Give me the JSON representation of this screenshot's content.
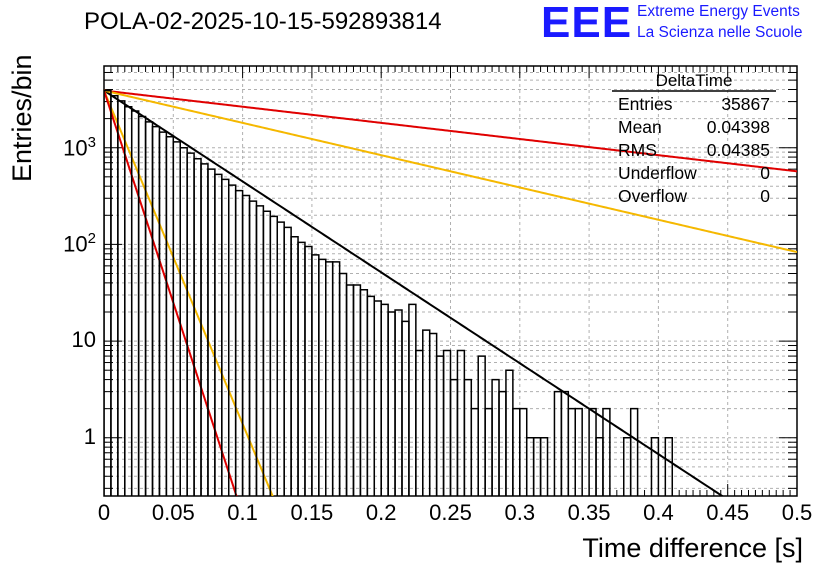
{
  "header": {
    "title": "POLA-02-2025-10-15-592893814",
    "logo_text": "EEE",
    "logo_line1": "Extreme Energy Events",
    "logo_line2": "La Scienza nelle Scuole"
  },
  "stats": {
    "title": "DeltaTime",
    "rows": [
      {
        "label": "Entries",
        "value": "35867"
      },
      {
        "label": "Mean",
        "value": "0.04398"
      },
      {
        "label": "RMS",
        "value": "0.04385"
      },
      {
        "label": "Underflow",
        "value": "0"
      },
      {
        "label": "Overflow",
        "value": "0"
      }
    ]
  },
  "chart_data": {
    "type": "histogram",
    "scale_y": "log",
    "xlabel": "Time difference [s]",
    "ylabel": "Entries/bin",
    "xlim": [
      0,
      0.5
    ],
    "ylim": [
      0.25,
      7000
    ],
    "bin_width": 0.005,
    "x_ticks": [
      "0",
      "0.05",
      "0.1",
      "0.15",
      "0.2",
      "0.25",
      "0.3",
      "0.35",
      "0.4",
      "0.45",
      "0.5"
    ],
    "y_ticks": [
      {
        "value": 1,
        "label": "1"
      },
      {
        "value": 10,
        "label": "10"
      },
      {
        "value": 100,
        "label": "10",
        "exp": "2"
      },
      {
        "value": 1000,
        "label": "10",
        "exp": "3"
      }
    ],
    "histogram_counts": [
      3900,
      3450,
      3050,
      2650,
      2400,
      2100,
      1850,
      1650,
      1450,
      1300,
      1150,
      1000,
      880,
      770,
      680,
      600,
      530,
      470,
      410,
      360,
      320,
      280,
      250,
      220,
      195,
      170,
      150,
      120,
      105,
      95,
      78,
      70,
      66,
      66,
      50,
      38,
      38,
      34,
      29,
      26,
      24,
      20,
      21,
      16,
      24,
      8,
      13,
      12,
      7,
      8,
      4,
      8,
      4,
      2,
      7,
      2,
      4,
      3,
      5,
      2,
      2,
      1,
      1,
      1,
      0,
      3,
      3,
      2,
      2,
      0,
      2,
      1,
      2,
      0,
      0,
      1,
      2,
      0,
      0,
      1,
      0,
      1,
      0,
      0,
      0,
      0,
      0,
      0,
      0,
      0,
      0,
      0,
      0,
      0,
      0,
      0,
      0,
      0,
      0,
      0
    ],
    "series": [
      {
        "name": "fit",
        "color": "#000000",
        "amplitude": 3900,
        "tau": 0.0462
      },
      {
        "name": "upper-slow",
        "color": "#e00000",
        "amplitude": 3900,
        "tau": 0.26
      },
      {
        "name": "upper-slow-2",
        "color": "#f5b800",
        "amplitude": 3900,
        "tau": 0.13
      },
      {
        "name": "fast-1",
        "color": "#f5b800",
        "amplitude": 3900,
        "tau": 0.0126
      },
      {
        "name": "fast-2",
        "color": "#e00000",
        "amplitude": 3900,
        "tau": 0.0099
      }
    ]
  }
}
